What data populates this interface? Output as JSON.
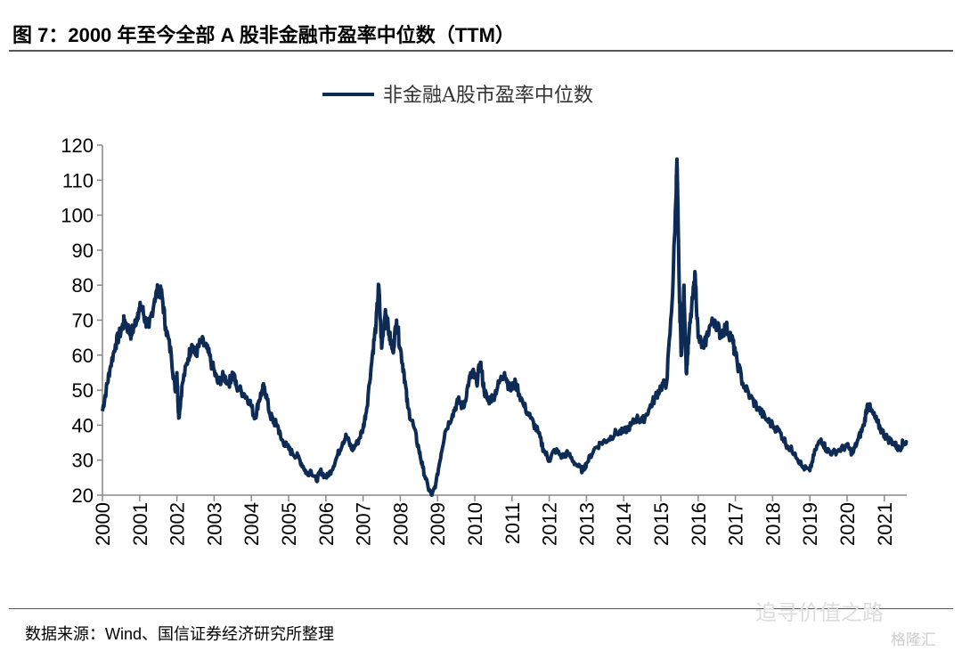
{
  "title": "图 7：2000 年至今全部 A 股非金融市盈率中位数（TTM）",
  "source": "数据来源：Wind、国信证券经济研究所整理",
  "watermark": {
    "wechat": "追寻价值之路",
    "site": "格隆汇"
  },
  "chart_data": {
    "type": "line",
    "title": "",
    "xlabel": "",
    "ylabel": "",
    "ylim": [
      20,
      120
    ],
    "xlim": [
      2000,
      2021.6
    ],
    "yticks": [
      "20",
      "30",
      "40",
      "50",
      "60",
      "70",
      "80",
      "90",
      "100",
      "110",
      "120"
    ],
    "xticks": [
      "2000",
      "2001",
      "2002",
      "2003",
      "2004",
      "2005",
      "2006",
      "2007",
      "2008",
      "2009",
      "2010",
      "2011",
      "2012",
      "2013",
      "2014",
      "2015",
      "2016",
      "2017",
      "2018",
      "2019",
      "2020",
      "2021"
    ],
    "legend": "top-center",
    "color": "#0d2b55",
    "series": [
      {
        "name": "非金融A股市盈率中位数",
        "points": [
          [
            2000.0,
            44
          ],
          [
            2000.1,
            50
          ],
          [
            2000.2,
            56
          ],
          [
            2000.35,
            63
          ],
          [
            2000.5,
            67
          ],
          [
            2000.6,
            70
          ],
          [
            2000.75,
            66
          ],
          [
            2000.85,
            68
          ],
          [
            2000.95,
            72
          ],
          [
            2001.05,
            74
          ],
          [
            2001.15,
            70
          ],
          [
            2001.25,
            68
          ],
          [
            2001.4,
            76
          ],
          [
            2001.5,
            79
          ],
          [
            2001.6,
            77
          ],
          [
            2001.7,
            68
          ],
          [
            2001.85,
            60
          ],
          [
            2001.95,
            50
          ],
          [
            2002.0,
            55
          ],
          [
            2002.05,
            42
          ],
          [
            2002.15,
            52
          ],
          [
            2002.3,
            59
          ],
          [
            2002.4,
            63
          ],
          [
            2002.5,
            60
          ],
          [
            2002.65,
            64
          ],
          [
            2002.8,
            62
          ],
          [
            2002.95,
            57
          ],
          [
            2003.1,
            52
          ],
          [
            2003.25,
            54
          ],
          [
            2003.4,
            52
          ],
          [
            2003.5,
            55
          ],
          [
            2003.6,
            51
          ],
          [
            2003.8,
            49
          ],
          [
            2003.95,
            47
          ],
          [
            2004.1,
            42
          ],
          [
            2004.2,
            47
          ],
          [
            2004.3,
            50
          ],
          [
            2004.35,
            51
          ],
          [
            2004.5,
            43
          ],
          [
            2004.6,
            41
          ],
          [
            2004.7,
            40
          ],
          [
            2004.8,
            36
          ],
          [
            2004.95,
            34
          ],
          [
            2005.1,
            32
          ],
          [
            2005.25,
            31
          ],
          [
            2005.4,
            28
          ],
          [
            2005.5,
            26
          ],
          [
            2005.6,
            27
          ],
          [
            2005.75,
            24
          ],
          [
            2005.85,
            27
          ],
          [
            2006.0,
            25
          ],
          [
            2006.15,
            27
          ],
          [
            2006.3,
            31
          ],
          [
            2006.45,
            35
          ],
          [
            2006.55,
            37
          ],
          [
            2006.7,
            33
          ],
          [
            2006.85,
            35
          ],
          [
            2007.0,
            39
          ],
          [
            2007.1,
            45
          ],
          [
            2007.25,
            60
          ],
          [
            2007.35,
            69
          ],
          [
            2007.42,
            80
          ],
          [
            2007.5,
            62
          ],
          [
            2007.6,
            73
          ],
          [
            2007.7,
            66
          ],
          [
            2007.8,
            61
          ],
          [
            2007.9,
            70
          ],
          [
            2008.0,
            62
          ],
          [
            2008.1,
            55
          ],
          [
            2008.2,
            45
          ],
          [
            2008.35,
            40
          ],
          [
            2008.5,
            33
          ],
          [
            2008.6,
            28
          ],
          [
            2008.75,
            22
          ],
          [
            2008.85,
            20
          ],
          [
            2008.95,
            23
          ],
          [
            2009.1,
            32
          ],
          [
            2009.2,
            38
          ],
          [
            2009.4,
            43
          ],
          [
            2009.55,
            47
          ],
          [
            2009.7,
            45
          ],
          [
            2009.85,
            53
          ],
          [
            2009.95,
            55
          ],
          [
            2010.05,
            52
          ],
          [
            2010.15,
            58
          ],
          [
            2010.25,
            50
          ],
          [
            2010.35,
            47
          ],
          [
            2010.5,
            48
          ],
          [
            2010.65,
            52
          ],
          [
            2010.8,
            55
          ],
          [
            2010.95,
            50
          ],
          [
            2011.1,
            52
          ],
          [
            2011.3,
            46
          ],
          [
            2011.5,
            42
          ],
          [
            2011.7,
            38
          ],
          [
            2011.85,
            33
          ],
          [
            2012.0,
            30
          ],
          [
            2012.15,
            33
          ],
          [
            2012.35,
            31
          ],
          [
            2012.5,
            32
          ],
          [
            2012.7,
            29
          ],
          [
            2012.9,
            27
          ],
          [
            2013.0,
            29
          ],
          [
            2013.2,
            33
          ],
          [
            2013.4,
            35
          ],
          [
            2013.6,
            36
          ],
          [
            2013.8,
            38
          ],
          [
            2014.0,
            38
          ],
          [
            2014.2,
            40
          ],
          [
            2014.35,
            42
          ],
          [
            2014.5,
            41
          ],
          [
            2014.7,
            45
          ],
          [
            2014.85,
            48
          ],
          [
            2015.0,
            51
          ],
          [
            2015.15,
            52
          ],
          [
            2015.3,
            75
          ],
          [
            2015.4,
            104
          ],
          [
            2015.43,
            116
          ],
          [
            2015.5,
            75
          ],
          [
            2015.55,
            60
          ],
          [
            2015.62,
            80
          ],
          [
            2015.68,
            55
          ],
          [
            2015.75,
            65
          ],
          [
            2015.85,
            76
          ],
          [
            2015.92,
            83
          ],
          [
            2016.0,
            65
          ],
          [
            2016.15,
            62
          ],
          [
            2016.3,
            68
          ],
          [
            2016.45,
            70
          ],
          [
            2016.6,
            66
          ],
          [
            2016.75,
            68
          ],
          [
            2016.9,
            65
          ],
          [
            2017.0,
            60
          ],
          [
            2017.2,
            52
          ],
          [
            2017.4,
            48
          ],
          [
            2017.6,
            45
          ],
          [
            2017.8,
            42
          ],
          [
            2018.0,
            40
          ],
          [
            2018.2,
            38
          ],
          [
            2018.4,
            34
          ],
          [
            2018.6,
            32
          ],
          [
            2018.8,
            28
          ],
          [
            2019.0,
            27
          ],
          [
            2019.15,
            33
          ],
          [
            2019.3,
            36
          ],
          [
            2019.45,
            33
          ],
          [
            2019.6,
            32
          ],
          [
            2019.8,
            33
          ],
          [
            2020.0,
            34
          ],
          [
            2020.15,
            32
          ],
          [
            2020.3,
            36
          ],
          [
            2020.45,
            40
          ],
          [
            2020.55,
            46
          ],
          [
            2020.65,
            44
          ],
          [
            2020.8,
            41
          ],
          [
            2020.95,
            38
          ],
          [
            2021.1,
            36
          ],
          [
            2021.25,
            35
          ],
          [
            2021.4,
            33
          ],
          [
            2021.5,
            35
          ],
          [
            2021.6,
            35
          ]
        ]
      }
    ]
  }
}
